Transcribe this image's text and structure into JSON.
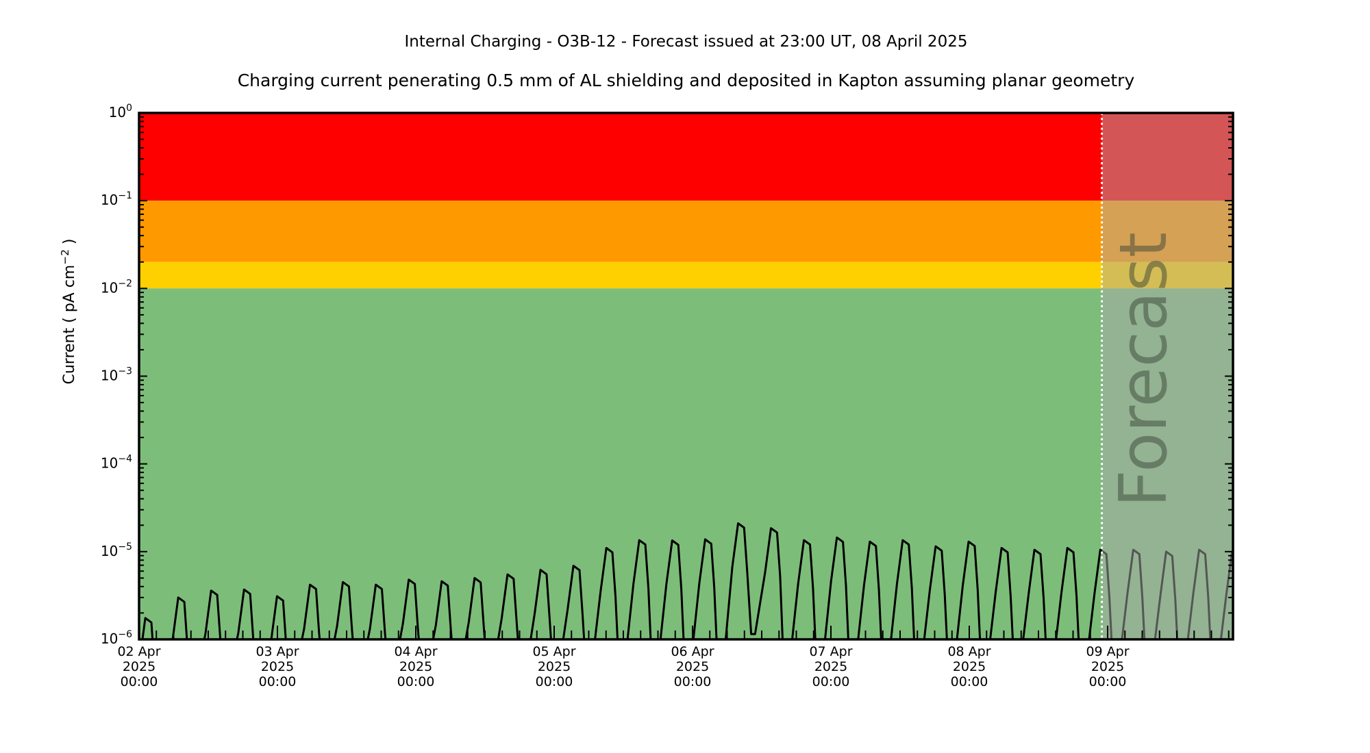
{
  "header": {
    "title": "Internal Charging - O3B-12 - Forecast issued at 23:00 UT, 08 April 2025",
    "subtitle": "Charging current penerating 0.5 mm of AL shielding and deposited in Kapton assuming planar geometry"
  },
  "ylabel": {
    "pre": "Current ( pA cm",
    "sup": "−2",
    "post": " )"
  },
  "forecast": {
    "watermark": "Forecast",
    "issued_at": "23:00 UT, 08 April 2025",
    "start_day_offset": 6.9583
  },
  "chart_data": {
    "type": "line",
    "title": "Internal Charging - O3B-12 - Forecast issued at 23:00 UT, 08 April 2025",
    "subtitle": "Charging current penerating 0.5 mm of AL shielding and deposited in Kapton assuming planar geometry",
    "ylabel": "Current ( pA cm^-2 )",
    "y_scale": "log",
    "ylim": [
      1e-06,
      1.0
    ],
    "y_exponents": [
      0,
      -1,
      -2,
      -3,
      -4,
      -5,
      -6
    ],
    "x_start": "02 Apr 2025 00:00 UT",
    "x_span_days": 7.906,
    "x_ticks": [
      {
        "date": "02 Apr",
        "year": "2025",
        "time": "00:00"
      },
      {
        "date": "03 Apr",
        "year": "2025",
        "time": "00:00"
      },
      {
        "date": "04 Apr",
        "year": "2025",
        "time": "00:00"
      },
      {
        "date": "05 Apr",
        "year": "2025",
        "time": "00:00"
      },
      {
        "date": "06 Apr",
        "year": "2025",
        "time": "00:00"
      },
      {
        "date": "07 Apr",
        "year": "2025",
        "time": "00:00"
      },
      {
        "date": "08 Apr",
        "year": "2025",
        "time": "00:00"
      },
      {
        "date": "09 Apr",
        "year": "2025",
        "time": "00:00"
      }
    ],
    "bands": [
      {
        "name": "red",
        "lo": 0.1,
        "hi": 1.0,
        "color": "#ff0000"
      },
      {
        "name": "orange",
        "lo": 0.02,
        "hi": 0.1,
        "color": "#ff9900"
      },
      {
        "name": "yellow",
        "lo": 0.01,
        "hi": 0.02,
        "color": "#ffd000"
      },
      {
        "name": "green",
        "lo": 1e-06,
        "hi": 0.01,
        "color": "#7dbd7a"
      }
    ],
    "overlay_color": "rgba(169,169,169,0.5)",
    "line_color": "#000000",
    "forecast_line_color": "#ffffff",
    "spikes_peaks_pA_cm2": [
      {
        "t": 0.065,
        "v": 1.75e-06
      },
      {
        "t": 0.303,
        "v": 3e-06
      },
      {
        "t": 0.541,
        "v": 3.6e-06
      },
      {
        "t": 0.779,
        "v": 3.7e-06
      },
      {
        "t": 1.017,
        "v": 3.1e-06
      },
      {
        "t": 1.255,
        "v": 4.2e-06
      },
      {
        "t": 1.493,
        "v": 4.5e-06
      },
      {
        "t": 1.731,
        "v": 4.2e-06
      },
      {
        "t": 1.969,
        "v": 4.8e-06
      },
      {
        "t": 2.207,
        "v": 4.6e-06
      },
      {
        "t": 2.445,
        "v": 5e-06
      },
      {
        "t": 2.683,
        "v": 5.5e-06
      },
      {
        "t": 2.921,
        "v": 6.2e-06
      },
      {
        "t": 3.159,
        "v": 6.9e-06
      },
      {
        "t": 3.397,
        "v": 1.1e-05
      },
      {
        "t": 3.635,
        "v": 1.35e-05
      },
      {
        "t": 3.873,
        "v": 1.34e-05
      },
      {
        "t": 4.111,
        "v": 1.38e-05
      },
      {
        "t": 4.349,
        "v": 2.1e-05
      },
      {
        "t": 4.587,
        "v": 1.85e-05
      },
      {
        "t": 4.825,
        "v": 1.35e-05
      },
      {
        "t": 5.063,
        "v": 1.45e-05
      },
      {
        "t": 5.301,
        "v": 1.3e-05
      },
      {
        "t": 5.539,
        "v": 1.35e-05
      },
      {
        "t": 5.777,
        "v": 1.15e-05
      },
      {
        "t": 6.015,
        "v": 1.3e-05
      },
      {
        "t": 6.253,
        "v": 1.1e-05
      },
      {
        "t": 6.491,
        "v": 1.05e-05
      },
      {
        "t": 6.729,
        "v": 1.1e-05
      },
      {
        "t": 6.967,
        "v": 1.05e-05
      },
      {
        "t": 7.205,
        "v": 1.05e-05
      },
      {
        "t": 7.443,
        "v": 1e-05
      },
      {
        "t": 7.681,
        "v": 1.05e-05
      },
      {
        "t": 7.919,
        "v": 1e-05
      }
    ],
    "valley_exception": {
      "between": [
        18,
        19
      ],
      "floor": 1.15e-06
    },
    "grid": false,
    "legend": "none"
  }
}
